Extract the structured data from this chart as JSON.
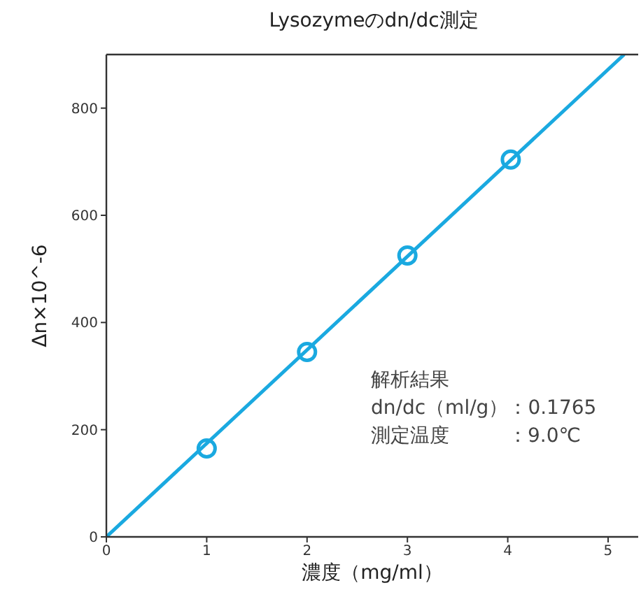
{
  "chart_data": {
    "type": "scatter",
    "title": "Lysozymeのdn/dc測定",
    "xlabel": "濃度（mg/ml）",
    "ylabel": "Δn×10^-6",
    "xlim": [
      0,
      5.3
    ],
    "xticks": [
      0,
      1,
      2,
      3,
      4,
      5
    ],
    "ylim": [
      0,
      900
    ],
    "yticks": [
      0,
      200,
      400,
      600,
      800
    ],
    "series": [
      {
        "color": "#1aa9e0",
        "marker": "circle",
        "x": [
          1,
          2,
          3,
          4.03
        ],
        "values": [
          165,
          345,
          525,
          704
        ]
      },
      {
        "type": "line",
        "color": "#1aa9e0",
        "x": [
          0,
          5.16
        ],
        "values": [
          0,
          900
        ]
      }
    ],
    "annotations": [
      "解析結果",
      "dn/dc（ml/g）：0.1765",
      "測定温度　　　：9.0℃"
    ]
  }
}
